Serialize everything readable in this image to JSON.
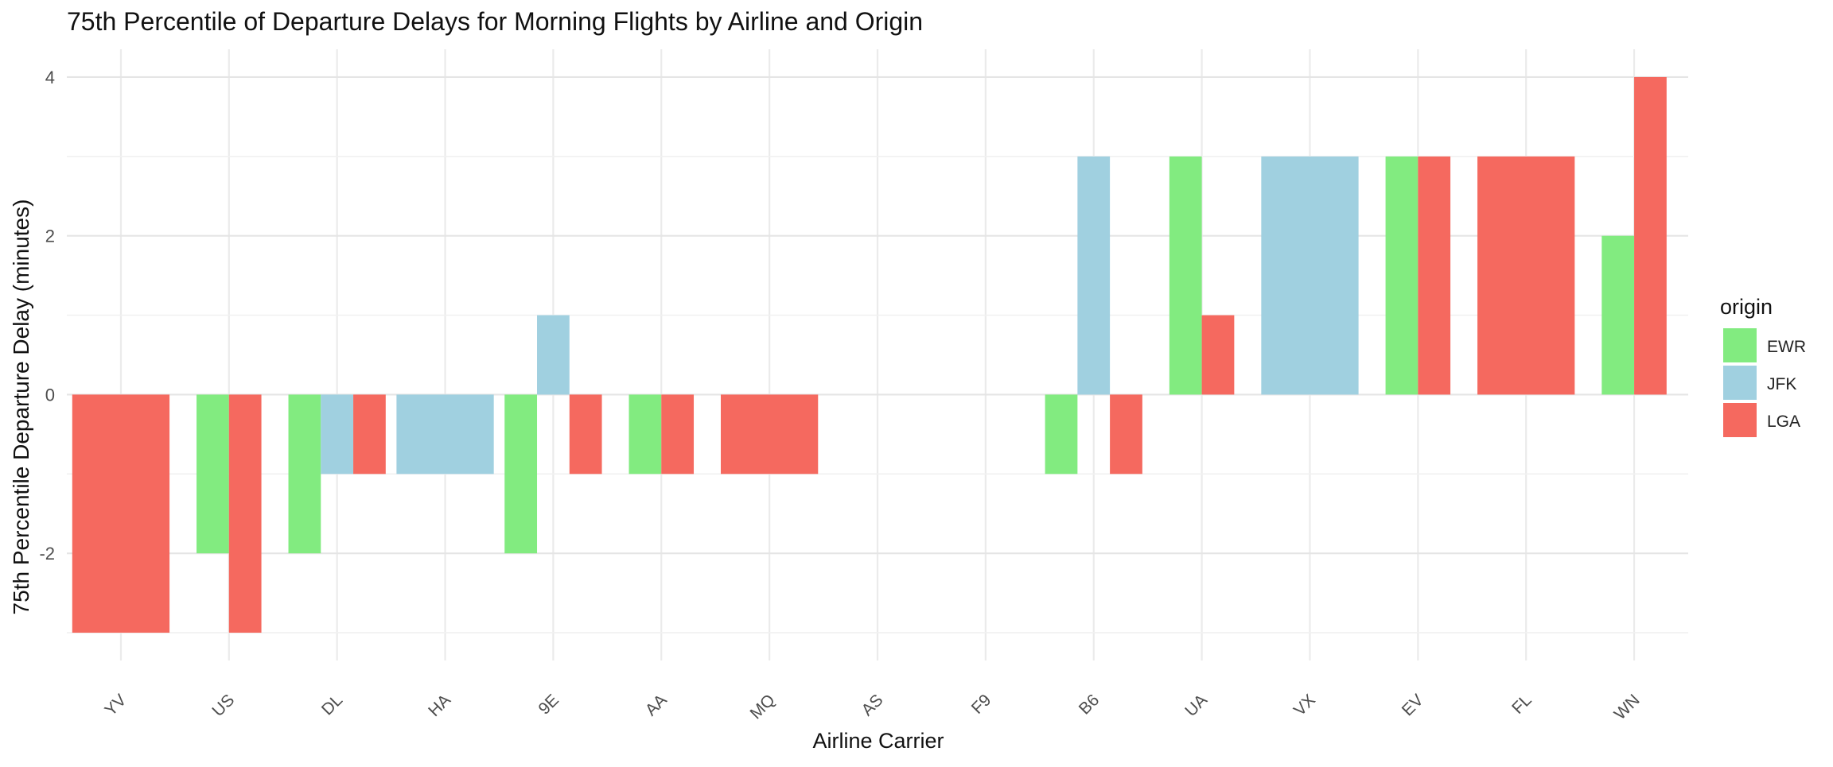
{
  "chart_data": {
    "type": "bar",
    "title": "75th Percentile of Departure Delays for Morning Flights by Airline and Origin",
    "xlabel": "Airline Carrier",
    "ylabel": "75th Percentile Departure Delay (minutes)",
    "categories": [
      "YV",
      "US",
      "DL",
      "HA",
      "9E",
      "AA",
      "MQ",
      "AS",
      "F9",
      "B6",
      "UA",
      "VX",
      "EV",
      "FL",
      "WN"
    ],
    "ylim": [
      -3.35,
      4.35
    ],
    "yticks": [
      -2,
      0,
      2,
      4
    ],
    "ytick_labels": [
      "-2",
      "0",
      "2",
      "4"
    ],
    "grid": true,
    "legend": {
      "title": "origin",
      "position": "right"
    },
    "series": [
      {
        "name": "EWR",
        "color": "#82EB80",
        "values": [
          null,
          -2,
          -2,
          null,
          -2,
          -1,
          null,
          null,
          null,
          -1,
          3,
          null,
          3,
          null,
          2
        ]
      },
      {
        "name": "JFK",
        "color": "#A0D0E0",
        "values": [
          null,
          null,
          -1,
          -1,
          1,
          null,
          null,
          null,
          null,
          3,
          null,
          3,
          null,
          null,
          null
        ]
      },
      {
        "name": "LGA",
        "color": "#F5695F",
        "values": [
          -3,
          -3,
          -1,
          null,
          -1,
          -1,
          -1,
          null,
          null,
          -1,
          1,
          null,
          3,
          3,
          4
        ]
      }
    ]
  }
}
